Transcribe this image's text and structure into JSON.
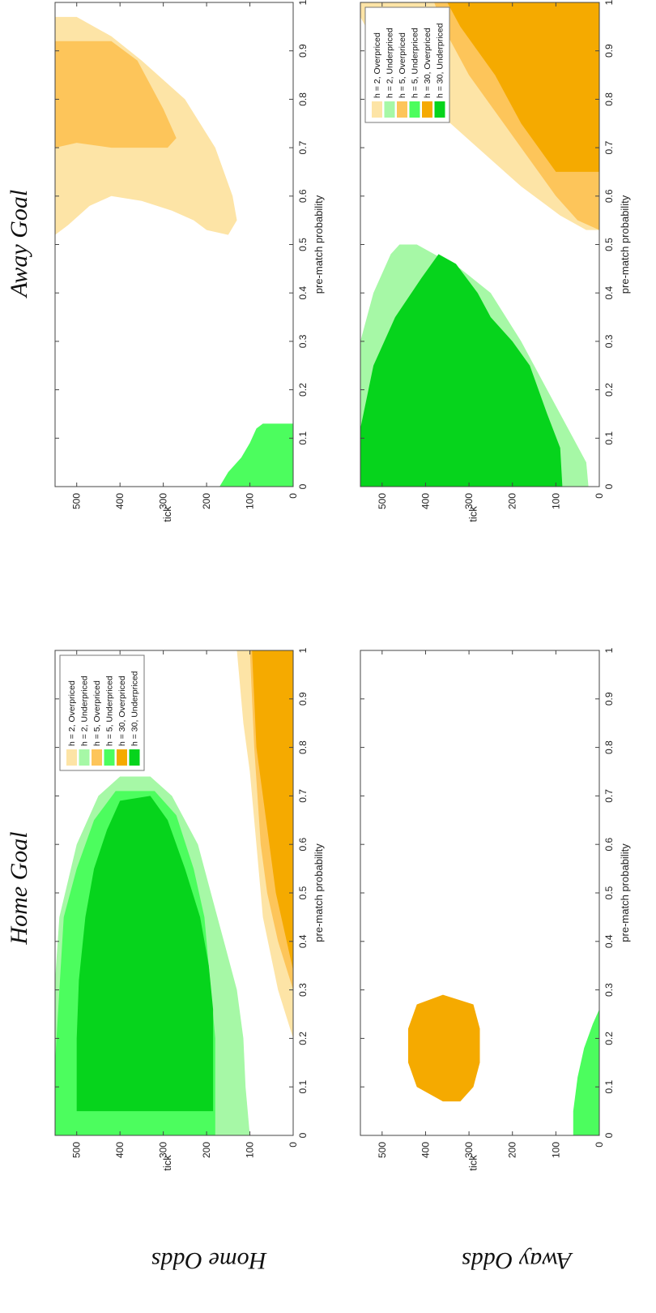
{
  "titles": {
    "home_goal": "Home Goal",
    "away_goal": "Away Goal",
    "home_odds": "Home Odds",
    "away_odds": "Away Odds"
  },
  "colors": {
    "h2_over": "#fde4a6",
    "h2_under": "#a6f8a6",
    "h5_over": "#fdc55a",
    "h5_under": "#4cfd5e",
    "h30_over": "#f5aa00",
    "h30_under": "#06d41c"
  },
  "chart_data": [
    {
      "panel": "home-goal-home-odds",
      "type": "area",
      "xlabel": "pre-match probability",
      "ylabel": "tick",
      "xlim": [
        0,
        1
      ],
      "ylim": [
        0,
        550
      ],
      "x_ticks": [
        "0",
        "0.1",
        "0.2",
        "0.3",
        "0.4",
        "0.5",
        "0.6",
        "0.7",
        "0.8",
        "0.9",
        "1"
      ],
      "y_ticks": [
        "100",
        "200",
        "300",
        "400",
        "500",
        "0"
      ],
      "legend": true,
      "legend_placement": "top-right",
      "series": [
        {
          "name": "h = 2, Overpriced",
          "color_key": "h2_over",
          "polygon": [
            [
              0.2,
              0
            ],
            [
              0.3,
              35
            ],
            [
              0.45,
              70
            ],
            [
              0.6,
              85
            ],
            [
              0.75,
              100
            ],
            [
              0.85,
              115
            ],
            [
              1.0,
              130
            ],
            [
              1.0,
              0
            ]
          ]
        },
        {
          "name": "h = 2, Underpriced",
          "color_key": "h2_under",
          "polygon": [
            [
              0,
              550
            ],
            [
              0.05,
              550
            ],
            [
              0.15,
              550
            ],
            [
              0.32,
              550
            ],
            [
              0.45,
              540
            ],
            [
              0.6,
              500
            ],
            [
              0.7,
              450
            ],
            [
              0.74,
              400
            ],
            [
              0.74,
              330
            ],
            [
              0.7,
              280
            ],
            [
              0.6,
              220
            ],
            [
              0.5,
              190
            ],
            [
              0.4,
              160
            ],
            [
              0.3,
              130
            ],
            [
              0.2,
              115
            ],
            [
              0.1,
              110
            ],
            [
              0,
              100
            ]
          ]
        },
        {
          "name": "h = 5, Overpriced",
          "color_key": "h5_over",
          "polygon": [
            [
              0.3,
              0
            ],
            [
              0.4,
              35
            ],
            [
              0.5,
              60
            ],
            [
              0.6,
              75
            ],
            [
              0.8,
              90
            ],
            [
              1.0,
              100
            ],
            [
              1.0,
              0
            ]
          ]
        },
        {
          "name": "h = 5, Underpriced",
          "color_key": "h5_under",
          "polygon": [
            [
              0,
              550
            ],
            [
              0.15,
              550
            ],
            [
              0.3,
              540
            ],
            [
              0.45,
              530
            ],
            [
              0.55,
              500
            ],
            [
              0.65,
              460
            ],
            [
              0.71,
              410
            ],
            [
              0.71,
              320
            ],
            [
              0.66,
              270
            ],
            [
              0.55,
              230
            ],
            [
              0.45,
              205
            ],
            [
              0.3,
              190
            ],
            [
              0.2,
              180
            ],
            [
              0,
              180
            ]
          ]
        },
        {
          "name": "h = 30, Overpriced",
          "color_key": "h30_over",
          "polygon": [
            [
              0.34,
              0
            ],
            [
              0.4,
              15
            ],
            [
              0.5,
              40
            ],
            [
              0.6,
              55
            ],
            [
              0.7,
              70
            ],
            [
              0.8,
              85
            ],
            [
              1.0,
              95
            ],
            [
              1.0,
              0
            ]
          ]
        },
        {
          "name": "h = 30, Underpriced",
          "color_key": "h30_under",
          "polygon": [
            [
              0.05,
              500
            ],
            [
              0.2,
              500
            ],
            [
              0.32,
              495
            ],
            [
              0.45,
              480
            ],
            [
              0.55,
              460
            ],
            [
              0.63,
              430
            ],
            [
              0.69,
              400
            ],
            [
              0.7,
              330
            ],
            [
              0.65,
              290
            ],
            [
              0.55,
              250
            ],
            [
              0.45,
              215
            ],
            [
              0.35,
              195
            ],
            [
              0.26,
              185
            ],
            [
              0.05,
              185
            ]
          ]
        }
      ]
    },
    {
      "panel": "away-goal-home-odds",
      "type": "area",
      "xlabel": "pre-match probability",
      "ylabel": "tick",
      "xlim": [
        0,
        1
      ],
      "ylim": [
        0,
        550
      ],
      "x_ticks": [
        "0",
        "0.1",
        "0.2",
        "0.3",
        "0.4",
        "0.5",
        "0.6",
        "0.7",
        "0.8",
        "0.9",
        "1"
      ],
      "y_ticks": [
        "100",
        "200",
        "300",
        "400",
        "500",
        "0"
      ],
      "legend": false,
      "series": [
        {
          "name": "h = 2, Overpriced",
          "color_key": "h2_over",
          "polygon": [
            [
              0.52,
              550
            ],
            [
              0.6,
              550
            ],
            [
              0.97,
              550
            ],
            [
              0.97,
              500
            ],
            [
              0.93,
              420
            ],
            [
              0.88,
              350
            ],
            [
              0.8,
              250
            ],
            [
              0.7,
              180
            ],
            [
              0.6,
              140
            ],
            [
              0.55,
              130
            ],
            [
              0.52,
              150
            ],
            [
              0.53,
              200
            ],
            [
              0.55,
              230
            ],
            [
              0.57,
              280
            ],
            [
              0.59,
              350
            ],
            [
              0.6,
              420
            ],
            [
              0.58,
              470
            ],
            [
              0.54,
              520
            ]
          ]
        },
        {
          "name": "h = 5, Overpriced",
          "color_key": "h5_over",
          "polygon": [
            [
              0.7,
              550
            ],
            [
              0.92,
              550
            ],
            [
              0.92,
              420
            ],
            [
              0.88,
              360
            ],
            [
              0.78,
              300
            ],
            [
              0.72,
              270
            ],
            [
              0.7,
              290
            ],
            [
              0.7,
              420
            ],
            [
              0.71,
              500
            ]
          ]
        },
        {
          "name": "h = 5, Underpriced",
          "color_key": "h5_under",
          "polygon": [
            [
              0,
              0
            ],
            [
              0,
              170
            ],
            [
              0.03,
              150
            ],
            [
              0.06,
              120
            ],
            [
              0.09,
              100
            ],
            [
              0.12,
              85
            ],
            [
              0.13,
              70
            ],
            [
              0.13,
              0
            ]
          ]
        }
      ]
    },
    {
      "panel": "home-goal-away-odds",
      "type": "area",
      "xlabel": "pre-match probability",
      "ylabel": "tick",
      "xlim": [
        0,
        1
      ],
      "ylim": [
        0,
        550
      ],
      "x_ticks": [
        "0",
        "0.1",
        "0.2",
        "0.3",
        "0.4",
        "0.5",
        "0.6",
        "0.7",
        "0.8",
        "0.9",
        "1"
      ],
      "y_ticks": [
        "100",
        "200",
        "300",
        "400",
        "500",
        "0"
      ],
      "legend": false,
      "series": [
        {
          "name": "h = 30, Overpriced",
          "color_key": "h30_over",
          "polygon": [
            [
              0.07,
              360
            ],
            [
              0.1,
              420
            ],
            [
              0.15,
              440
            ],
            [
              0.22,
              440
            ],
            [
              0.27,
              420
            ],
            [
              0.29,
              360
            ],
            [
              0.27,
              290
            ],
            [
              0.22,
              275
            ],
            [
              0.15,
              275
            ],
            [
              0.1,
              290
            ],
            [
              0.07,
              320
            ]
          ]
        },
        {
          "name": "h = 5, Underpriced",
          "color_key": "h5_under",
          "polygon": [
            [
              0,
              0
            ],
            [
              0,
              60
            ],
            [
              0.05,
              60
            ],
            [
              0.12,
              50
            ],
            [
              0.18,
              35
            ],
            [
              0.23,
              15
            ],
            [
              0.26,
              0
            ]
          ]
        }
      ]
    },
    {
      "panel": "away-goal-away-odds",
      "type": "area",
      "xlabel": "pre-match probability",
      "ylabel": "tick",
      "xlim": [
        0,
        1
      ],
      "ylim": [
        0,
        550
      ],
      "x_ticks": [
        "0",
        "0.1",
        "0.2",
        "0.3",
        "0.4",
        "0.5",
        "0.6",
        "0.7",
        "0.8",
        "0.9",
        "1"
      ],
      "y_ticks": [
        "100",
        "200",
        "300",
        "400",
        "500",
        "0"
      ],
      "legend": true,
      "legend_placement": "top-right",
      "series": [
        {
          "name": "h = 2, Underpriced",
          "color_key": "h2_under",
          "polygon": [
            [
              0,
              550
            ],
            [
              0.3,
              550
            ],
            [
              0.4,
              520
            ],
            [
              0.48,
              480
            ],
            [
              0.5,
              460
            ],
            [
              0.5,
              420
            ],
            [
              0.45,
              320
            ],
            [
              0.4,
              250
            ],
            [
              0.3,
              180
            ],
            [
              0.2,
              120
            ],
            [
              0.1,
              60
            ],
            [
              0.05,
              30
            ],
            [
              0,
              25
            ]
          ]
        },
        {
          "name": "h = 30, Underpriced",
          "color_key": "h30_under",
          "polygon": [
            [
              0,
              550
            ],
            [
              0.12,
              550
            ],
            [
              0.25,
              520
            ],
            [
              0.35,
              470
            ],
            [
              0.43,
              410
            ],
            [
              0.48,
              370
            ],
            [
              0.46,
              330
            ],
            [
              0.4,
              280
            ],
            [
              0.35,
              250
            ],
            [
              0.3,
              200
            ],
            [
              0.25,
              160
            ],
            [
              0.15,
              120
            ],
            [
              0.08,
              90
            ],
            [
              0,
              85
            ]
          ]
        },
        {
          "name": "h = 2, Overpriced",
          "color_key": "h2_over",
          "polygon": [
            [
              0.53,
              0
            ],
            [
              0.53,
              30
            ],
            [
              0.56,
              90
            ],
            [
              0.62,
              180
            ],
            [
              0.7,
              280
            ],
            [
              0.78,
              380
            ],
            [
              0.85,
              450
            ],
            [
              0.92,
              520
            ],
            [
              0.97,
              550
            ],
            [
              1.0,
              550
            ],
            [
              1.0,
              0
            ]
          ]
        },
        {
          "name": "h = 5, Overpriced",
          "color_key": "h5_over",
          "polygon": [
            [
              0.53,
              0
            ],
            [
              0.55,
              50
            ],
            [
              0.6,
              100
            ],
            [
              0.65,
              140
            ],
            [
              0.75,
              220
            ],
            [
              0.85,
              300
            ],
            [
              0.95,
              360
            ],
            [
              1.0,
              380
            ],
            [
              1.0,
              0
            ]
          ]
        },
        {
          "name": "h = 30, Overpriced",
          "color_key": "h30_over",
          "polygon": [
            [
              0.65,
              0
            ],
            [
              0.65,
              100
            ],
            [
              0.75,
              180
            ],
            [
              0.85,
              240
            ],
            [
              0.95,
              320
            ],
            [
              1.0,
              350
            ],
            [
              1.0,
              0
            ]
          ]
        }
      ]
    }
  ],
  "legend_entries": [
    {
      "label": "h = 2, Overpriced",
      "color_key": "h2_over"
    },
    {
      "label": "h = 2, Underpriced",
      "color_key": "h2_under"
    },
    {
      "label": "h = 5, Overpriced",
      "color_key": "h5_over"
    },
    {
      "label": "h = 5, Underpriced",
      "color_key": "h5_under"
    },
    {
      "label": "h = 30, Overpriced",
      "color_key": "h30_over"
    },
    {
      "label": "h = 30, Underpriced",
      "color_key": "h30_under"
    }
  ]
}
